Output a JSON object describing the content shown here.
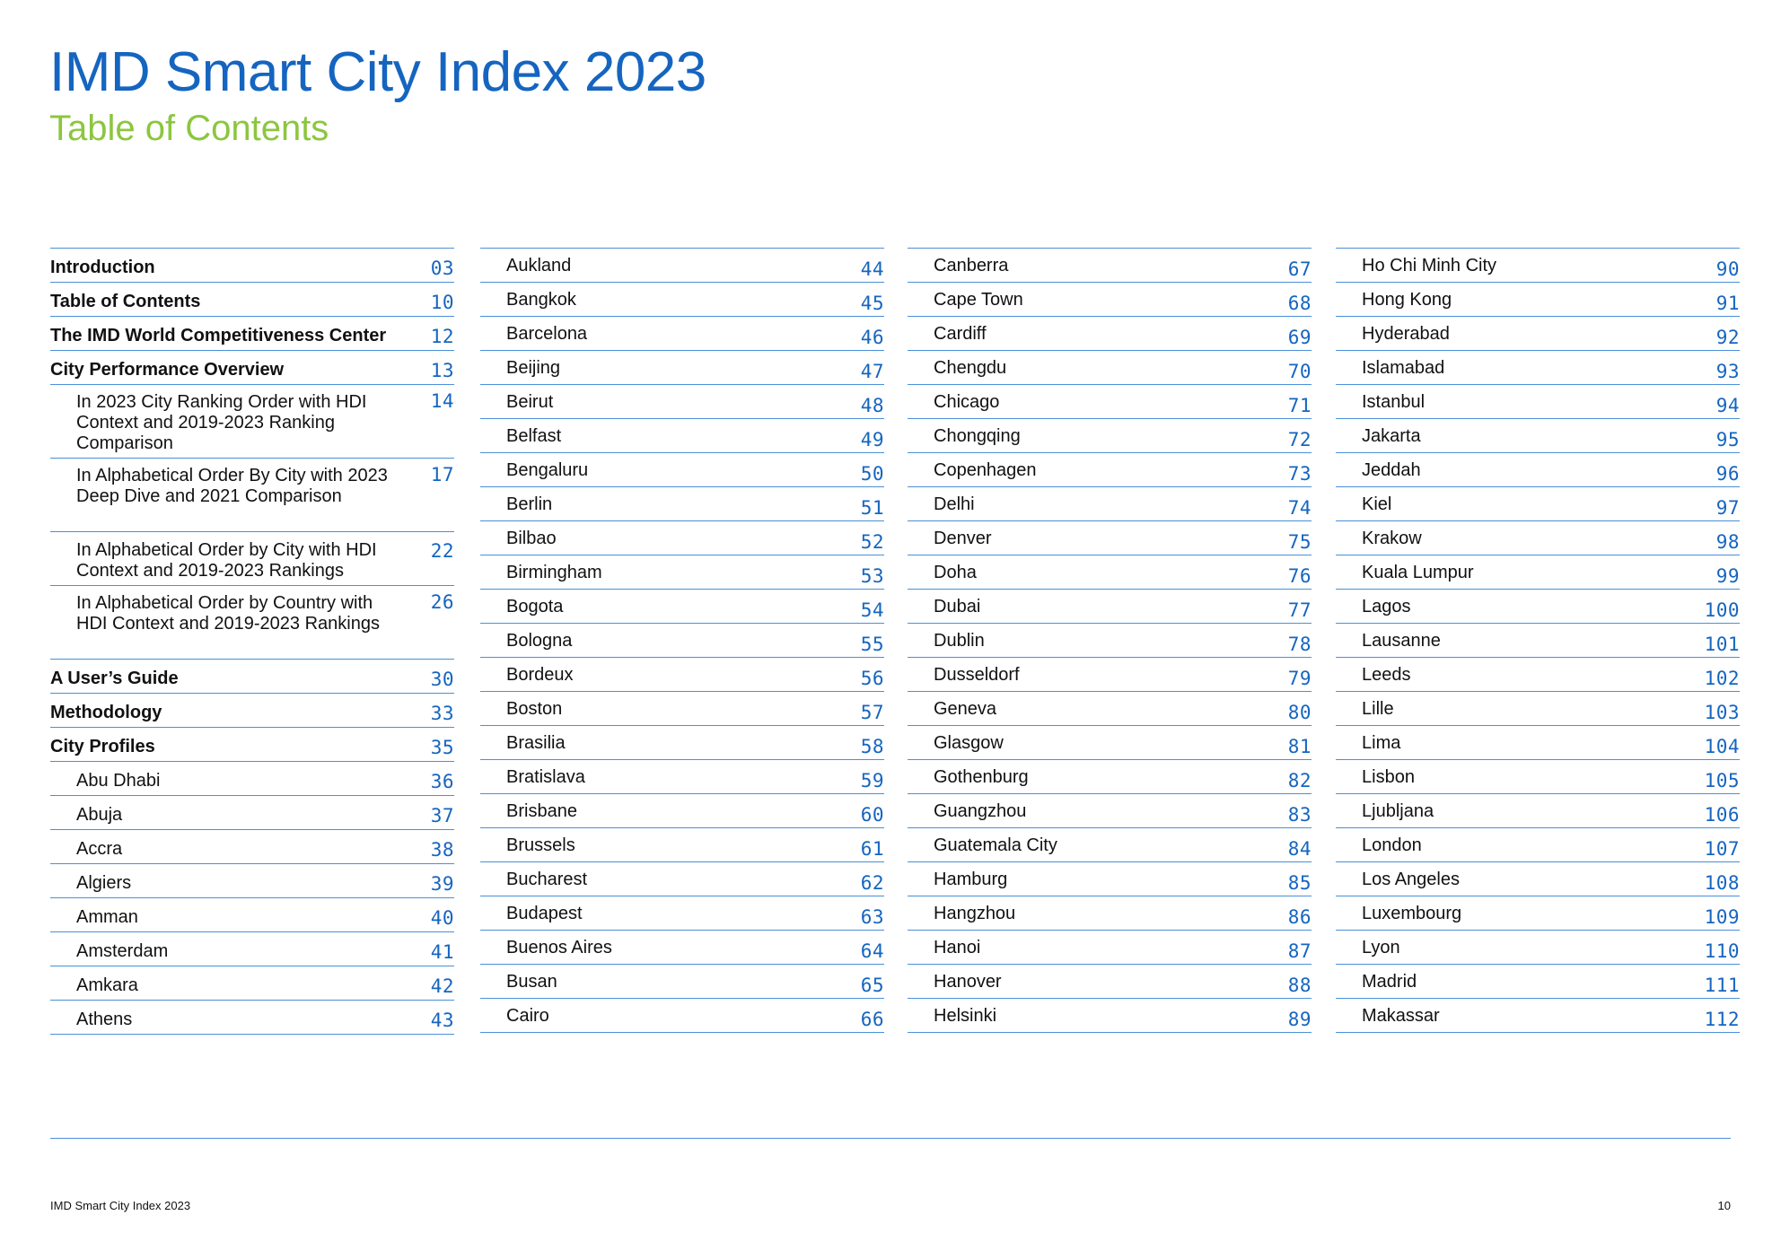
{
  "title": "IMD Smart City Index 2023",
  "subtitle": "Table of Contents",
  "columns": [
    [
      {
        "label": "Introduction",
        "page": "03",
        "style": "bold"
      },
      {
        "label": "Table of Contents",
        "page": "10",
        "style": "bold"
      },
      {
        "label": "The IMD World Competitiveness Center",
        "page": "12",
        "style": "bold"
      },
      {
        "label": "City Performance Overview",
        "page": "13",
        "style": "bold"
      },
      {
        "label": "In 2023 City Ranking Order with HDI Context and 2019-2023 Ranking Comparison",
        "page": "14",
        "style": "sub tall"
      },
      {
        "label": "In Alphabetical Order By City with 2023 Deep Dive and 2021 Comparison",
        "page": "17",
        "style": "sub tall"
      },
      {
        "label": "In Alphabetical Order by City with HDI Context and 2019-2023 Rankings",
        "page": "22",
        "style": "sub mid"
      },
      {
        "label": "In Alphabetical Order by Country with HDI Context and 2019-2023 Rankings",
        "page": "26",
        "style": "sub tall"
      },
      {
        "label": "A User’s Guide",
        "page": "30",
        "style": "bold"
      },
      {
        "label": "Methodology",
        "page": "33",
        "style": "bold"
      },
      {
        "label": "City Profiles",
        "page": "35",
        "style": "bold"
      },
      {
        "label": "Abu Dhabi",
        "page": "36",
        "style": "sub"
      },
      {
        "label": "Abuja",
        "page": "37",
        "style": "sub"
      },
      {
        "label": "Accra",
        "page": "38",
        "style": "sub"
      },
      {
        "label": "Algiers",
        "page": "39",
        "style": "sub"
      },
      {
        "label": "Amman",
        "page": "40",
        "style": "sub"
      },
      {
        "label": "Amsterdam",
        "page": "41",
        "style": "sub"
      },
      {
        "label": "Amkara",
        "page": "42",
        "style": "sub"
      },
      {
        "label": "Athens",
        "page": "43",
        "style": "sub"
      }
    ],
    [
      {
        "label": "Aukland",
        "page": "44"
      },
      {
        "label": "Bangkok",
        "page": "45"
      },
      {
        "label": "Barcelona",
        "page": "46"
      },
      {
        "label": "Beijing",
        "page": "47"
      },
      {
        "label": "Beirut",
        "page": "48"
      },
      {
        "label": "Belfast",
        "page": "49"
      },
      {
        "label": "Bengaluru",
        "page": "50"
      },
      {
        "label": "Berlin",
        "page": "51"
      },
      {
        "label": "Bilbao",
        "page": "52"
      },
      {
        "label": "Birmingham",
        "page": "53"
      },
      {
        "label": "Bogota",
        "page": "54"
      },
      {
        "label": "Bologna",
        "page": "55"
      },
      {
        "label": "Bordeux",
        "page": "56"
      },
      {
        "label": "Boston",
        "page": "57"
      },
      {
        "label": "Brasilia",
        "page": "58"
      },
      {
        "label": "Bratislava",
        "page": "59"
      },
      {
        "label": "Brisbane",
        "page": "60"
      },
      {
        "label": "Brussels",
        "page": "61"
      },
      {
        "label": "Bucharest",
        "page": "62"
      },
      {
        "label": "Budapest",
        "page": "63"
      },
      {
        "label": "Buenos Aires",
        "page": "64"
      },
      {
        "label": "Busan",
        "page": "65"
      },
      {
        "label": "Cairo",
        "page": "66"
      }
    ],
    [
      {
        "label": "Canberra",
        "page": "67"
      },
      {
        "label": "Cape Town",
        "page": "68"
      },
      {
        "label": "Cardiff",
        "page": "69"
      },
      {
        "label": "Chengdu",
        "page": "70"
      },
      {
        "label": "Chicago",
        "page": "71"
      },
      {
        "label": "Chongqing",
        "page": "72"
      },
      {
        "label": "Copenhagen",
        "page": "73"
      },
      {
        "label": "Delhi",
        "page": "74"
      },
      {
        "label": "Denver",
        "page": "75"
      },
      {
        "label": "Doha",
        "page": "76"
      },
      {
        "label": "Dubai",
        "page": "77"
      },
      {
        "label": "Dublin",
        "page": "78"
      },
      {
        "label": "Dusseldorf",
        "page": "79"
      },
      {
        "label": "Geneva",
        "page": "80"
      },
      {
        "label": "Glasgow",
        "page": "81"
      },
      {
        "label": "Gothenburg",
        "page": "82"
      },
      {
        "label": "Guangzhou",
        "page": "83"
      },
      {
        "label": "Guatemala City",
        "page": "84"
      },
      {
        "label": "Hamburg",
        "page": "85"
      },
      {
        "label": "Hangzhou",
        "page": "86"
      },
      {
        "label": "Hanoi",
        "page": "87"
      },
      {
        "label": "Hanover",
        "page": "88"
      },
      {
        "label": "Helsinki",
        "page": "89"
      }
    ],
    [
      {
        "label": "Ho Chi Minh City",
        "page": "90"
      },
      {
        "label": "Hong Kong",
        "page": "91"
      },
      {
        "label": "Hyderabad",
        "page": "92"
      },
      {
        "label": "Islamabad",
        "page": "93"
      },
      {
        "label": "Istanbul",
        "page": "94"
      },
      {
        "label": "Jakarta",
        "page": "95"
      },
      {
        "label": "Jeddah",
        "page": "96"
      },
      {
        "label": "Kiel",
        "page": "97"
      },
      {
        "label": "Krakow",
        "page": "98"
      },
      {
        "label": "Kuala Lumpur",
        "page": "99"
      },
      {
        "label": "Lagos",
        "page": "100"
      },
      {
        "label": "Lausanne",
        "page": "101"
      },
      {
        "label": "Leeds",
        "page": "102"
      },
      {
        "label": "Lille",
        "page": "103"
      },
      {
        "label": "Lima",
        "page": "104"
      },
      {
        "label": "Lisbon",
        "page": "105"
      },
      {
        "label": "Ljubljana",
        "page": "106"
      },
      {
        "label": "London",
        "page": "107"
      },
      {
        "label": "Los Angeles",
        "page": "108"
      },
      {
        "label": "Luxembourg",
        "page": "109"
      },
      {
        "label": "Lyon",
        "page": "110"
      },
      {
        "label": "Madrid",
        "page": "111"
      },
      {
        "label": "Makassar",
        "page": "112"
      }
    ]
  ],
  "footer": {
    "left": "IMD Smart City Index 2023",
    "right": "10"
  },
  "colors": {
    "title": "#1565c0",
    "subtitle": "#8cc63f",
    "rule": "#4a90d9",
    "page_number": "#1565c0"
  }
}
